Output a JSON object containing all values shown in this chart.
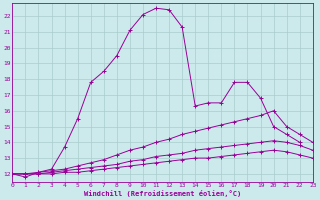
{
  "xlabel": "Windchill (Refroidissement éolien,°C)",
  "bg_color": "#cceaec",
  "line_color": "#990099",
  "grid_color": "#aacccc",
  "xlim": [
    0,
    23
  ],
  "ylim": [
    11.5,
    22.8
  ],
  "yticks": [
    12,
    13,
    14,
    15,
    16,
    17,
    18,
    19,
    20,
    21,
    22
  ],
  "xticks": [
    0,
    1,
    2,
    3,
    4,
    5,
    6,
    7,
    8,
    9,
    10,
    11,
    12,
    13,
    14,
    15,
    16,
    17,
    18,
    19,
    20,
    21,
    22,
    23
  ],
  "lines": [
    {
      "x": [
        0,
        1,
        2,
        3,
        4,
        5,
        6,
        7,
        8,
        9,
        10,
        11,
        12,
        13,
        14,
        15,
        16,
        17,
        18,
        19,
        20,
        21,
        22
      ],
      "y": [
        12.0,
        11.8,
        12.1,
        12.3,
        13.7,
        15.5,
        17.8,
        18.5,
        19.5,
        21.1,
        22.1,
        22.5,
        22.4,
        21.3,
        16.3,
        16.5,
        16.5,
        17.8,
        17.8,
        16.8,
        15.0,
        14.5,
        14.0
      ]
    },
    {
      "x": [
        0,
        1,
        2,
        3,
        4,
        5,
        6,
        7,
        8,
        9,
        10,
        11,
        12,
        13,
        14,
        15,
        16,
        17,
        18,
        19,
        20,
        21,
        22,
        23
      ],
      "y": [
        12.0,
        12.0,
        12.1,
        12.2,
        12.3,
        12.5,
        12.7,
        12.9,
        13.2,
        13.5,
        13.7,
        14.0,
        14.2,
        14.5,
        14.7,
        14.9,
        15.1,
        15.3,
        15.5,
        15.7,
        16.0,
        15.0,
        14.5,
        14.0
      ]
    },
    {
      "x": [
        0,
        1,
        2,
        3,
        4,
        5,
        6,
        7,
        8,
        9,
        10,
        11,
        12,
        13,
        14,
        15,
        16,
        17,
        18,
        19,
        20,
        21,
        22,
        23
      ],
      "y": [
        12.0,
        12.0,
        12.0,
        12.1,
        12.2,
        12.3,
        12.4,
        12.5,
        12.6,
        12.8,
        12.9,
        13.1,
        13.2,
        13.3,
        13.5,
        13.6,
        13.7,
        13.8,
        13.9,
        14.0,
        14.1,
        14.0,
        13.8,
        13.5
      ]
    },
    {
      "x": [
        0,
        1,
        2,
        3,
        4,
        5,
        6,
        7,
        8,
        9,
        10,
        11,
        12,
        13,
        14,
        15,
        16,
        17,
        18,
        19,
        20,
        21,
        22,
        23
      ],
      "y": [
        12.0,
        12.0,
        12.0,
        12.0,
        12.1,
        12.1,
        12.2,
        12.3,
        12.4,
        12.5,
        12.6,
        12.7,
        12.8,
        12.9,
        13.0,
        13.0,
        13.1,
        13.2,
        13.3,
        13.4,
        13.5,
        13.4,
        13.2,
        13.0
      ]
    }
  ]
}
